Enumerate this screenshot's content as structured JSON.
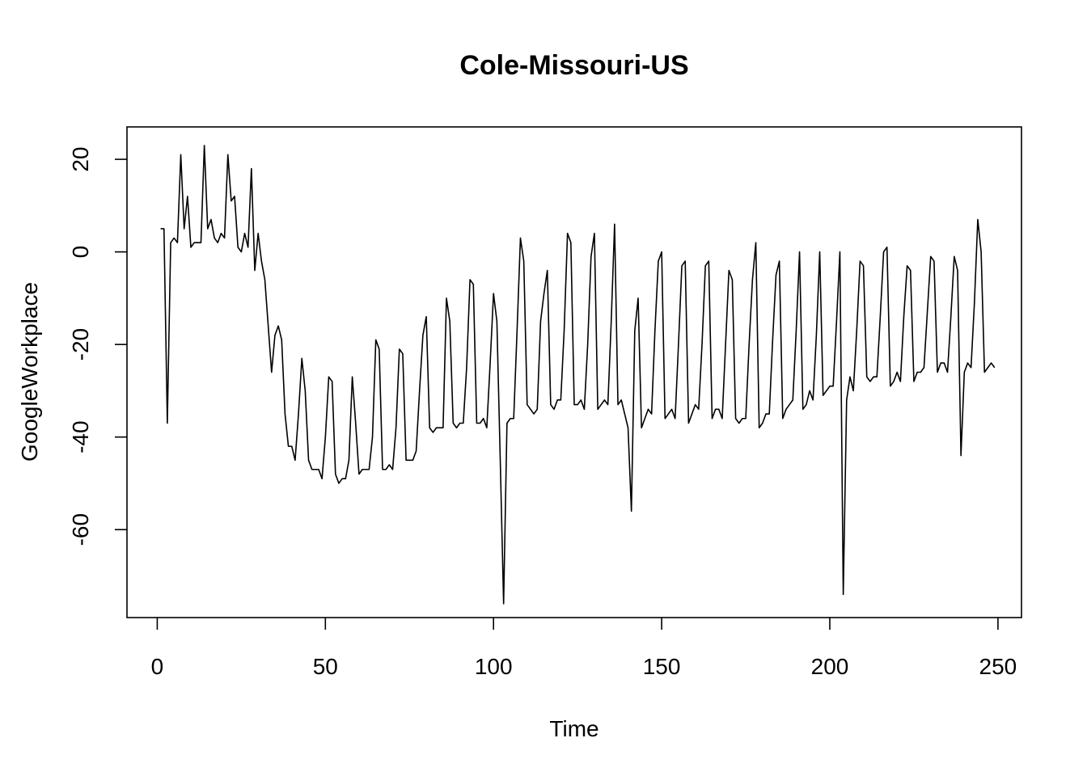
{
  "chart_data": {
    "type": "line",
    "title": "Cole-Missouri-US",
    "xlabel": "Time",
    "ylabel": "GoogleWorkplace",
    "xlim": [
      -9,
      257
    ],
    "ylim": [
      -79,
      27
    ],
    "xticks": [
      0,
      50,
      100,
      150,
      200,
      250
    ],
    "yticks": [
      -60,
      -40,
      -20,
      0,
      20
    ],
    "grid": false,
    "series": [
      {
        "values": [
          5,
          5,
          -37,
          2,
          3,
          2,
          21,
          5,
          12,
          1,
          2,
          2,
          2,
          23,
          5,
          7,
          3,
          2,
          4,
          3,
          21,
          11,
          12,
          1,
          0,
          4,
          1,
          18,
          -4,
          4,
          -2,
          -6,
          -16,
          -26,
          -18,
          -16,
          -19,
          -35,
          -42,
          -42,
          -45,
          -35,
          -23,
          -30,
          -45,
          -47,
          -47,
          -47,
          -49,
          -40,
          -27,
          -28,
          -48,
          -50,
          -49,
          -49,
          -45,
          -27,
          -37,
          -48,
          -47,
          -47,
          -47,
          -40,
          -19,
          -21,
          -47,
          -47,
          -46,
          -47,
          -38,
          -21,
          -22,
          -45,
          -45,
          -45,
          -43,
          -30,
          -18,
          -14,
          -38,
          -39,
          -38,
          -38,
          -38,
          -10,
          -15,
          -37,
          -38,
          -37,
          -37,
          -25,
          -6,
          -7,
          -37,
          -37,
          -36,
          -38,
          -24,
          -9,
          -15,
          -45,
          -76,
          -37,
          -36,
          -36,
          -17,
          3,
          -2,
          -33,
          -34,
          -35,
          -34,
          -15,
          -9,
          -4,
          -33,
          -34,
          -32,
          -32,
          -17,
          4,
          2,
          -33,
          -33,
          -32,
          -34,
          -20,
          -1,
          4,
          -34,
          -33,
          -32,
          -33,
          -15,
          6,
          -33,
          -32,
          -35,
          -38,
          -56,
          -17,
          -10,
          -38,
          -36,
          -34,
          -35,
          -17,
          -2,
          0,
          -36,
          -35,
          -34,
          -36,
          -20,
          -3,
          -2,
          -37,
          -35,
          -33,
          -34,
          -20,
          -3,
          -2,
          -36,
          -34,
          -34,
          -36,
          -20,
          -4,
          -6,
          -36,
          -37,
          -36,
          -36,
          -20,
          -6,
          2,
          -38,
          -37,
          -35,
          -35,
          -19,
          -5,
          -2,
          -36,
          -34,
          -33,
          -32,
          -17,
          0,
          -34,
          -33,
          -30,
          -32,
          -18,
          0,
          -31,
          -30,
          -29,
          -29,
          -15,
          0,
          -74,
          -32,
          -27,
          -30,
          -17,
          -2,
          -3,
          -27,
          -28,
          -27,
          -27,
          -14,
          0,
          1,
          -29,
          -28,
          -26,
          -28,
          -14,
          -3,
          -4,
          -28,
          -26,
          -26,
          -25,
          -13,
          -1,
          -2,
          -26,
          -24,
          -24,
          -26,
          -14,
          -1,
          -4,
          -44,
          -26,
          -24,
          -25,
          -11,
          7,
          0,
          -26,
          -25,
          -24,
          -25
        ]
      }
    ]
  }
}
